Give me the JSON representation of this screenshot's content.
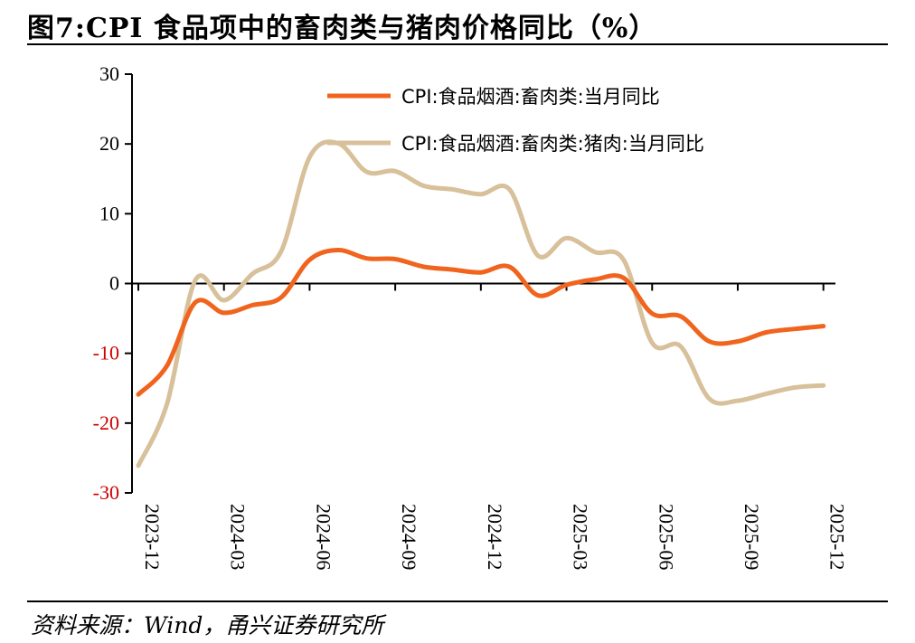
{
  "title": "图7:CPI 食品项中的畜肉类与猪肉价格同比（%）",
  "source": "资料来源：Wind，甬兴证券研究所",
  "chart_data": {
    "type": "line",
    "ylim": [
      -30,
      30
    ],
    "yticks": [
      30,
      20,
      10,
      0,
      -10,
      -20,
      -30
    ],
    "negative_tick_color": "#cc0000",
    "x_tick_labels": [
      "2023-12",
      "2024-03",
      "2024-06",
      "2024-09",
      "2024-12",
      "2025-03",
      "2025-06",
      "2025-09",
      "2025-12"
    ],
    "x": [
      "2023-12",
      "2024-01",
      "2024-02",
      "2024-03",
      "2024-04",
      "2024-05",
      "2024-06",
      "2024-07",
      "2024-08",
      "2024-09",
      "2024-10",
      "2024-11",
      "2024-12",
      "2025-01",
      "2025-02",
      "2025-03",
      "2025-04",
      "2025-05",
      "2025-06",
      "2025-07",
      "2025-08",
      "2025-09",
      "2025-10",
      "2025-11",
      "2025-12"
    ],
    "series": [
      {
        "name": "CPI:食品烟酒:畜肉类:当月同比",
        "color": "#f0641e",
        "values": [
          -15.9,
          -11.8,
          -2.7,
          -4.2,
          -3.1,
          -2.0,
          3.4,
          4.8,
          3.6,
          3.5,
          2.4,
          2.0,
          1.6,
          2.4,
          -1.7,
          -0.2,
          0.6,
          0.8,
          -4.3,
          -4.7,
          -8.3,
          -8.3,
          -7.0,
          -6.5,
          -6.1
        ]
      },
      {
        "name": "CPI:食品烟酒:畜肉类:猪肉:当月同比",
        "color": "#d7c09a",
        "values": [
          -26.1,
          -17.3,
          0.5,
          -2.4,
          1.4,
          4.6,
          18.1,
          20.1,
          16.0,
          16.1,
          14.0,
          13.5,
          12.8,
          13.5,
          4.0,
          6.5,
          4.5,
          3.4,
          -8.5,
          -9.0,
          -16.5,
          -16.8,
          -15.8,
          -14.9,
          -14.6
        ]
      }
    ]
  }
}
